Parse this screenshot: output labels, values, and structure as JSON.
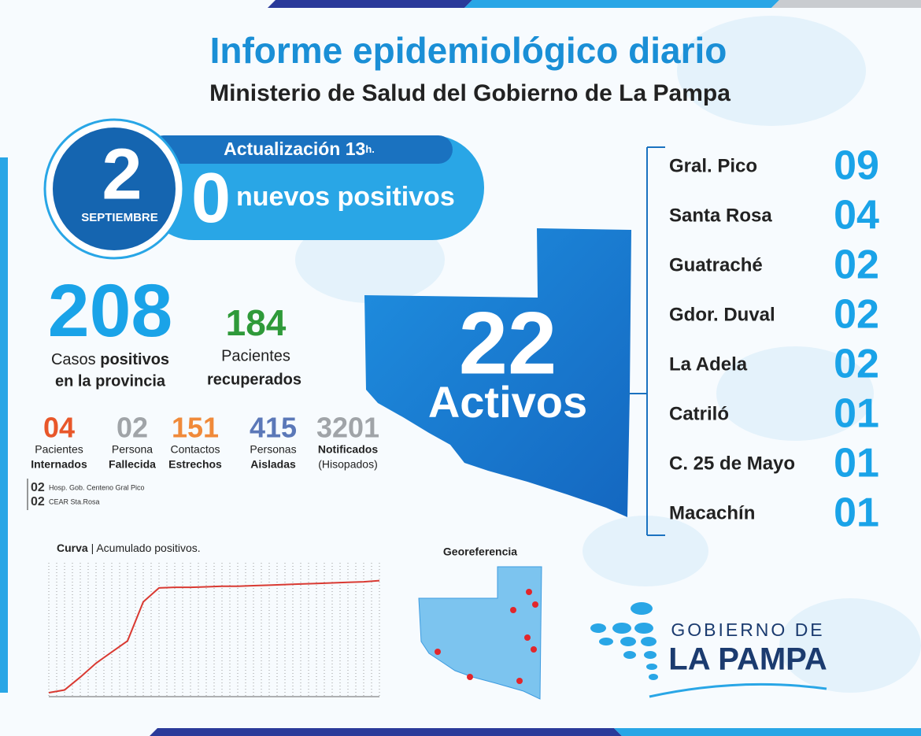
{
  "header": {
    "title": "Informe epidemiológico diario",
    "subtitle": "Ministerio de Salud del Gobierno de La Pampa"
  },
  "date": {
    "day": "2",
    "month": "SEPTIEMBRE"
  },
  "update": {
    "label": "Actualización 13",
    "unit": "h.",
    "new_value": "0",
    "new_label": "nuevos positivos"
  },
  "totals": {
    "cases": {
      "value": "208",
      "label_plain": "Casos",
      "label_bold": "positivos",
      "line2": "en la provincia"
    },
    "recovered": {
      "value": "184",
      "line1": "Pacientes",
      "line2": "recuperados"
    }
  },
  "stats": [
    {
      "value": "04",
      "line1": "Pacientes",
      "line2": "Internados",
      "color": "#e8572a"
    },
    {
      "value": "02",
      "line1": "Persona",
      "line2": "Fallecida",
      "color": "#a0a4a8"
    },
    {
      "value": "151",
      "line1": "Contactos",
      "line2": "Estrechos",
      "color": "#f08a3a"
    },
    {
      "value": "415",
      "line1": "Personas",
      "line2": "Aisladas",
      "color": "#5b78b8"
    },
    {
      "value": "3201",
      "line1": "Notificados",
      "line2": "(Hisopados)",
      "color": "#a0a4a8"
    }
  ],
  "hospitals": [
    {
      "value": "02",
      "label": "Hosp. Gob. Centeno Gral Pico"
    },
    {
      "value": "02",
      "label": "CEAR Sta.Rosa"
    }
  ],
  "active": {
    "value": "22",
    "label": "Activos"
  },
  "localities": [
    {
      "name": "Gral. Pico",
      "value": "09"
    },
    {
      "name": "Santa Rosa",
      "value": "04"
    },
    {
      "name": "Guatraché",
      "value": "02"
    },
    {
      "name": "Gdor. Duval",
      "value": "02"
    },
    {
      "name": "La Adela",
      "value": "02"
    },
    {
      "name": "Catriló",
      "value": "01"
    },
    {
      "name": "C. 25 de Mayo",
      "value": "01"
    },
    {
      "name": "Macachín",
      "value": "01"
    }
  ],
  "curve": {
    "title_bold": "Curva",
    "title": "| Acumulado positivos.",
    "color": "#d93a32",
    "values": [
      7,
      12,
      35,
      60,
      80,
      100,
      170,
      195,
      196,
      196,
      197,
      198,
      198,
      199,
      200,
      201,
      202,
      203,
      204,
      205,
      206,
      208
    ]
  },
  "georef": {
    "title": "Georeferencia"
  },
  "logo": {
    "line1": "GOBIERNO DE",
    "line2": "LA PAMPA"
  }
}
